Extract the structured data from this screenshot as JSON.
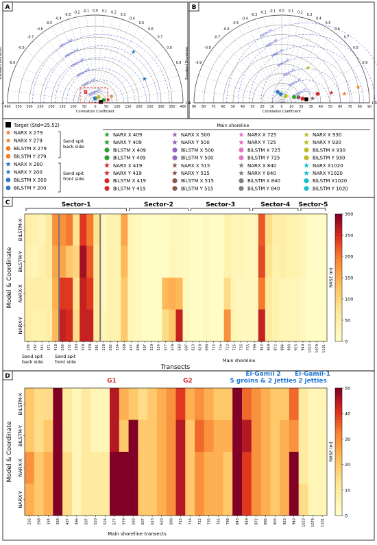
{
  "panel_labels": {
    "A": "A",
    "B": "B",
    "C": "C",
    "D": "D"
  },
  "polar": {
    "corr_ticks": [
      "0.0",
      "0.1",
      "0.2",
      "0.3",
      "0.4",
      "0.5",
      "0.6",
      "0.7",
      "0.8",
      "0.9",
      "1.0"
    ],
    "neg_corr_ticks": [
      "-0.1",
      "-0.2",
      "-0.3",
      "-0.4",
      "-0.5",
      "-0.6",
      "-0.7",
      "-0.8",
      "-0.9",
      "-1"
    ],
    "xlabel": "Correlation Coefficient",
    "ylabel": "Standard Deviation",
    "inset_label": "B"
  },
  "legend": {
    "target": "Target (Std=25.52)",
    "main_shoreline": "Main shoreline",
    "group_back": [
      "Sand spit",
      "back side"
    ],
    "group_front": [
      "Sand spit",
      "front side"
    ],
    "col0": [
      {
        "label": "NARX X 279",
        "color": "#f07f2a",
        "marker": "star"
      },
      {
        "label": "NARX Y 279",
        "color": "#f07f2a",
        "marker": "star"
      },
      {
        "label": "BiLSTM X 279",
        "color": "#f07f2a",
        "marker": "circle"
      },
      {
        "label": "BiLSTM Y 279",
        "color": "#f07f2a",
        "marker": "circle"
      },
      {
        "label": "NARX X 200",
        "color": "#2b7bc0",
        "marker": "star"
      },
      {
        "label": "NARX Y 200",
        "color": "#2b7bc0",
        "marker": "star"
      },
      {
        "label": "BiLSTM X 200",
        "color": "#2b7bc0",
        "marker": "circle"
      },
      {
        "label": "BiLSTM Y 200",
        "color": "#2b7bc0",
        "marker": "circle"
      }
    ],
    "grid": [
      [
        {
          "label": "NARX X 409",
          "color": "#2ca02c",
          "marker": "star"
        },
        {
          "label": "NARX Y 409",
          "color": "#2ca02c",
          "marker": "star"
        },
        {
          "label": "BiLSTM X 409",
          "color": "#2ca02c",
          "marker": "circle"
        },
        {
          "label": "BiLSTM Y 409",
          "color": "#2ca02c",
          "marker": "circle"
        },
        {
          "label": "NARX X 419",
          "color": "#d62728",
          "marker": "star"
        },
        {
          "label": "NARX Y 419",
          "color": "#d62728",
          "marker": "star"
        },
        {
          "label": "BiLSTM X 419",
          "color": "#d62728",
          "marker": "circle"
        },
        {
          "label": "BiLSTM Y 419",
          "color": "#d62728",
          "marker": "circle"
        }
      ],
      [
        {
          "label": "NARX X 500",
          "color": "#9467bd",
          "marker": "star"
        },
        {
          "label": "NARX Y 500",
          "color": "#9467bd",
          "marker": "star"
        },
        {
          "label": "BiLSTM X 500",
          "color": "#9467bd",
          "marker": "circle"
        },
        {
          "label": "BiLSTM Y 500",
          "color": "#9467bd",
          "marker": "circle"
        },
        {
          "label": "NARX X 515",
          "color": "#8c564b",
          "marker": "star"
        },
        {
          "label": "NARX Y 515",
          "color": "#8c564b",
          "marker": "star"
        },
        {
          "label": "BiLSTM X 515",
          "color": "#8c564b",
          "marker": "circle"
        },
        {
          "label": "BiLSTM Y 515",
          "color": "#8c564b",
          "marker": "circle"
        }
      ],
      [
        {
          "label": "NARX X 725",
          "color": "#e377c2",
          "marker": "star"
        },
        {
          "label": "NARX Y 725",
          "color": "#e377c2",
          "marker": "star"
        },
        {
          "label": "BiLSTM X 725",
          "color": "#e377c2",
          "marker": "circle"
        },
        {
          "label": "BiLSTM Y 725",
          "color": "#e377c2",
          "marker": "circle"
        },
        {
          "label": "NARX X 840",
          "color": "#7f7f7f",
          "marker": "star"
        },
        {
          "label": "NARX Y 840",
          "color": "#7f7f7f",
          "marker": "star"
        },
        {
          "label": "BiLSTM X  840",
          "color": "#7f7f7f",
          "marker": "circle"
        },
        {
          "label": "BiLSTM Y  840",
          "color": "#7f7f7f",
          "marker": "circle"
        }
      ],
      [
        {
          "label": "NARX X 930",
          "color": "#bcbd22",
          "marker": "star"
        },
        {
          "label": "NARX Y 930",
          "color": "#bcbd22",
          "marker": "star"
        },
        {
          "label": "BiLSTM X 930",
          "color": "#bcbd22",
          "marker": "circle"
        },
        {
          "label": "BiLSTM Y 930",
          "color": "#bcbd22",
          "marker": "circle"
        },
        {
          "label": "NARX X1020",
          "color": "#17becf",
          "marker": "star"
        },
        {
          "label": "NARX Y1020",
          "color": "#17becf",
          "marker": "star"
        },
        {
          "label": "BiLSTM X1020",
          "color": "#17becf",
          "marker": "circle"
        },
        {
          "label": "BiLSTM Y 1020",
          "color": "#17becf",
          "marker": "circle"
        }
      ]
    ]
  },
  "chart_data": [
    {
      "id": "A",
      "type": "scatter",
      "subtype": "taylor-diagram",
      "xlabel": "Correlation Coefficient",
      "ylabel": "Standard Deviation",
      "std_max": 400,
      "std_ticks": [
        "400",
        "350",
        "300",
        "250",
        "200",
        "150",
        "100",
        "50",
        "0",
        "50",
        "100",
        "150",
        "200",
        "250",
        "300",
        "350",
        "400"
      ],
      "rmsd_labels": [
        "RMSD=50",
        "RMSD=100",
        "RMSD=150",
        "RMSD=200",
        "RMSD=250",
        "RMSD=300"
      ],
      "target_std": 25.52,
      "points": [
        {
          "corr": 0.6,
          "std": 290,
          "color": "#2b7bc0",
          "marker": "star"
        },
        {
          "corr": 0.9,
          "std": 250,
          "color": "#2b7bc0",
          "marker": "star"
        },
        {
          "corr": 0.93,
          "std": 80,
          "color": "#f07f2a",
          "marker": "star"
        },
        {
          "corr": 0.97,
          "std": 60,
          "color": "#d62728",
          "marker": "star"
        },
        {
          "corr": 0.95,
          "std": 40,
          "color": "#2ca02c",
          "marker": "circle"
        },
        {
          "corr": -0.05,
          "std": 20,
          "color": "#2b7bc0",
          "marker": "circle"
        },
        {
          "corr": 0.5,
          "std": 30,
          "color": "#bcbd22",
          "marker": "circle"
        },
        {
          "corr": 0.99,
          "std": 25.52,
          "color": "#000000",
          "marker": "square"
        }
      ]
    },
    {
      "id": "B",
      "type": "scatter",
      "subtype": "taylor-diagram",
      "xlabel": "Correlation Coefficient",
      "ylabel": "Standard Deviation",
      "std_max": 90,
      "std_ticks": [
        "90",
        "80",
        "70",
        "60",
        "50",
        "40",
        "30",
        "20",
        "10",
        "0",
        "10",
        "20",
        "30",
        "40",
        "50",
        "60",
        "70",
        "80",
        "90"
      ],
      "rmsd_labels": [
        "RMSD=10",
        "RMSD=20",
        "RMSD=30",
        "RMSD=40",
        "RMSD=50",
        "RMSD=60",
        "RMSD=70"
      ],
      "target_std": 25.52,
      "points": [
        {
          "corr": 0.6,
          "std": 45,
          "color": "#bcbd22",
          "marker": "star"
        },
        {
          "corr": 0.98,
          "std": 80,
          "color": "#f07f2a",
          "marker": "star"
        },
        {
          "corr": 0.99,
          "std": 65,
          "color": "#f07f2a",
          "marker": "star"
        },
        {
          "corr": 0.98,
          "std": 52,
          "color": "#d62728",
          "marker": "star"
        },
        {
          "corr": 0.97,
          "std": 38,
          "color": "#d62728",
          "marker": "circle"
        },
        {
          "corr": 0.99,
          "std": 32,
          "color": "#8c564b",
          "marker": "star"
        },
        {
          "corr": 0.99,
          "std": 25.52,
          "color": "#000000",
          "marker": "square"
        },
        {
          "corr": 0.98,
          "std": 22,
          "color": "#d62728",
          "marker": "circle"
        },
        {
          "corr": 0.95,
          "std": 18,
          "color": "#8c564b",
          "marker": "circle"
        },
        {
          "corr": 0.9,
          "std": 14,
          "color": "#2ca02c",
          "marker": "circle"
        },
        {
          "corr": 0.5,
          "std": 8,
          "color": "#bcbd22",
          "marker": "circle"
        },
        {
          "corr": -0.1,
          "std": 9,
          "color": "#2b7bc0",
          "marker": "circle"
        },
        {
          "corr": -0.35,
          "std": 12,
          "color": "#2b7bc0",
          "marker": "circle"
        }
      ]
    },
    {
      "id": "C",
      "type": "heatmap",
      "ylabel": "Model & Coordinate",
      "xlabel": "Transects",
      "colorbar_label": "RMSE (m)",
      "colorbar_ticks": [
        0,
        50,
        100,
        150,
        200,
        250,
        300
      ],
      "vmax": 300,
      "rows": [
        "BiLSTM-X",
        "BiLSTM-Y",
        "NARX-X",
        "NARX-Y"
      ],
      "columns": [
        "205",
        "282",
        "341",
        "371",
        "418",
        "205",
        "232",
        "283",
        "320",
        "330",
        "391",
        "228",
        "282",
        "334",
        "369",
        "437",
        "496",
        "507",
        "520",
        "524",
        "577",
        "579",
        "583",
        "607",
        "613",
        "620",
        "690",
        "715",
        "716",
        "722",
        "725",
        "735",
        "755",
        "799",
        "843",
        "849",
        "872",
        "886",
        "903",
        "923",
        "940",
        "1023",
        "1079",
        "1101"
      ],
      "values": [
        [
          50,
          40,
          30,
          60,
          180,
          180,
          200,
          80,
          240,
          200,
          80,
          20,
          40,
          40,
          160,
          30,
          20,
          10,
          10,
          10,
          10,
          20,
          20,
          20,
          10,
          10,
          20,
          10,
          10,
          40,
          30,
          30,
          20,
          20,
          220,
          90,
          50,
          50,
          40,
          40,
          30,
          10,
          10,
          10
        ],
        [
          40,
          30,
          40,
          60,
          160,
          160,
          120,
          100,
          280,
          220,
          60,
          20,
          40,
          40,
          140,
          30,
          20,
          10,
          10,
          10,
          10,
          30,
          20,
          20,
          10,
          10,
          20,
          10,
          10,
          40,
          30,
          30,
          20,
          20,
          230,
          80,
          40,
          50,
          40,
          40,
          30,
          10,
          10,
          10
        ],
        [
          50,
          50,
          50,
          50,
          150,
          240,
          240,
          80,
          260,
          240,
          60,
          20,
          40,
          40,
          120,
          30,
          20,
          10,
          10,
          10,
          140,
          150,
          140,
          20,
          10,
          10,
          20,
          10,
          10,
          90,
          30,
          20,
          20,
          20,
          200,
          60,
          40,
          30,
          30,
          30,
          20,
          10,
          10,
          10
        ],
        [
          50,
          40,
          40,
          50,
          140,
          260,
          250,
          90,
          260,
          260,
          60,
          30,
          40,
          40,
          120,
          30,
          20,
          10,
          10,
          10,
          90,
          120,
          260,
          20,
          10,
          10,
          20,
          10,
          10,
          180,
          30,
          20,
          20,
          20,
          260,
          60,
          40,
          30,
          30,
          30,
          20,
          10,
          10,
          10
        ]
      ],
      "sectors": [
        "Sector-1",
        "Sector-2",
        "Sector-3",
        "Sector-4",
        "Sector-5"
      ],
      "group_labels": [
        [
          "Sand spit",
          "back side"
        ],
        [
          "Sand spit",
          "front side"
        ],
        [
          "Main shoreline"
        ]
      ]
    },
    {
      "id": "D",
      "type": "heatmap",
      "ylabel": "Model & Coordinate",
      "xlabel": "Main shoreline transects",
      "colorbar_label": "RMSE (m)",
      "colorbar_ticks": [
        0,
        10,
        20,
        30,
        40,
        50
      ],
      "vmax": 50,
      "rows": [
        "BiLSTM-X",
        "BiLSTM-Y",
        "NARX-X",
        "NARX-Y"
      ],
      "columns": [
        "232",
        "268",
        "334",
        "369",
        "437",
        "496",
        "507",
        "520",
        "524",
        "577",
        "579",
        "583",
        "607",
        "613",
        "620",
        "690",
        "715",
        "716",
        "722",
        "735",
        "755",
        "799",
        "843",
        "849",
        "872",
        "886",
        "903",
        "923",
        "940",
        "1023",
        "1079",
        "1101"
      ],
      "values": [
        [
          20,
          15,
          15,
          50,
          10,
          5,
          10,
          5,
          5,
          45,
          25,
          20,
          15,
          20,
          25,
          30,
          40,
          25,
          30,
          25,
          20,
          20,
          50,
          35,
          30,
          25,
          20,
          20,
          35,
          10,
          5,
          5
        ],
        [
          20,
          15,
          20,
          50,
          10,
          5,
          10,
          5,
          5,
          45,
          20,
          50,
          20,
          20,
          25,
          30,
          45,
          20,
          35,
          30,
          25,
          25,
          50,
          45,
          30,
          25,
          20,
          25,
          30,
          10,
          5,
          5
        ],
        [
          30,
          20,
          25,
          50,
          15,
          5,
          10,
          10,
          10,
          50,
          50,
          50,
          20,
          20,
          25,
          30,
          45,
          20,
          30,
          25,
          25,
          20,
          50,
          40,
          30,
          25,
          20,
          25,
          50,
          10,
          5,
          5
        ],
        [
          25,
          20,
          25,
          50,
          15,
          5,
          10,
          10,
          10,
          50,
          50,
          50,
          20,
          20,
          25,
          30,
          45,
          20,
          30,
          25,
          25,
          20,
          50,
          40,
          30,
          25,
          20,
          25,
          50,
          15,
          5,
          5
        ]
      ],
      "annotations": [
        {
          "lines": [
            "G1"
          ],
          "color": "#d62728"
        },
        {
          "lines": [
            "G2"
          ],
          "color": "#d62728"
        },
        {
          "lines": [
            "El-Gamil 2",
            "5 groins & 2 jetties"
          ],
          "color": "#1f77d4"
        },
        {
          "lines": [
            "El-Gamil-1",
            "2 jetties"
          ],
          "color": "#1f77d4"
        }
      ]
    }
  ]
}
